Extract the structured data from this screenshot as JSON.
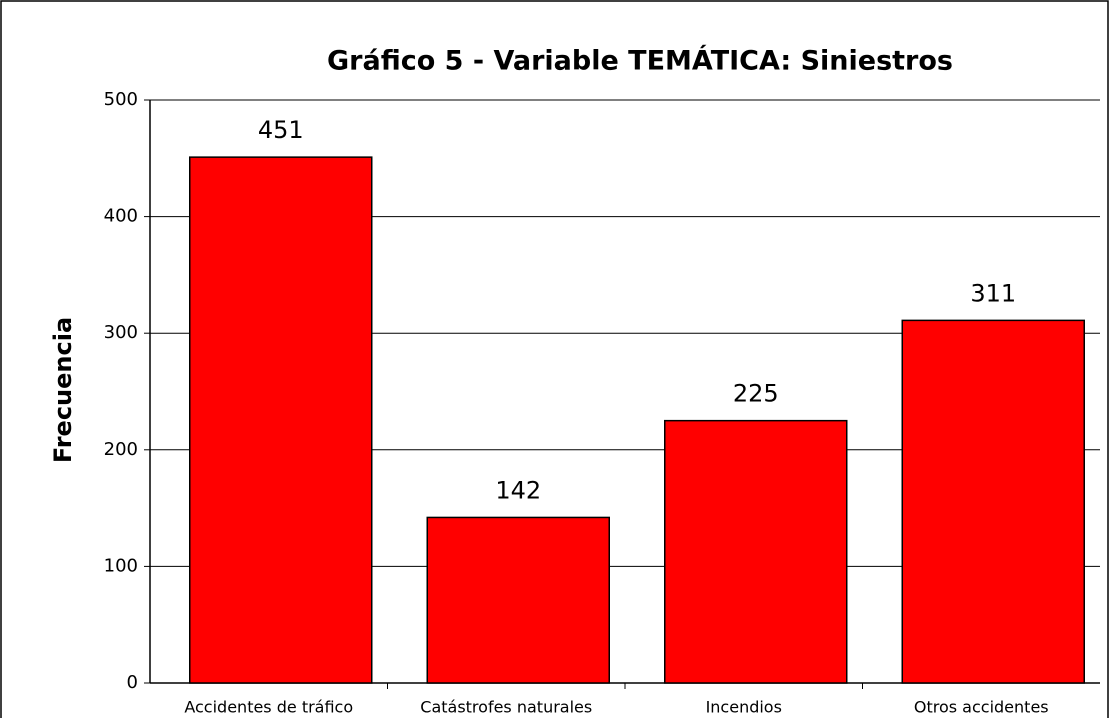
{
  "chart_data": {
    "type": "bar",
    "title": "Gráfico 5 - Variable TEMÁTICA: Siniestros",
    "y_label": "Frecuencia",
    "categories": [
      "Accidentes de tráfico",
      "Catástrofes naturales",
      "Incendios",
      "Otros accidentes"
    ],
    "values": [
      451,
      142,
      225,
      311
    ],
    "color": "#ff0000",
    "ylim": [
      0,
      500
    ],
    "yticks": [
      0,
      100,
      200,
      300,
      400,
      500
    ],
    "grid": true
  }
}
